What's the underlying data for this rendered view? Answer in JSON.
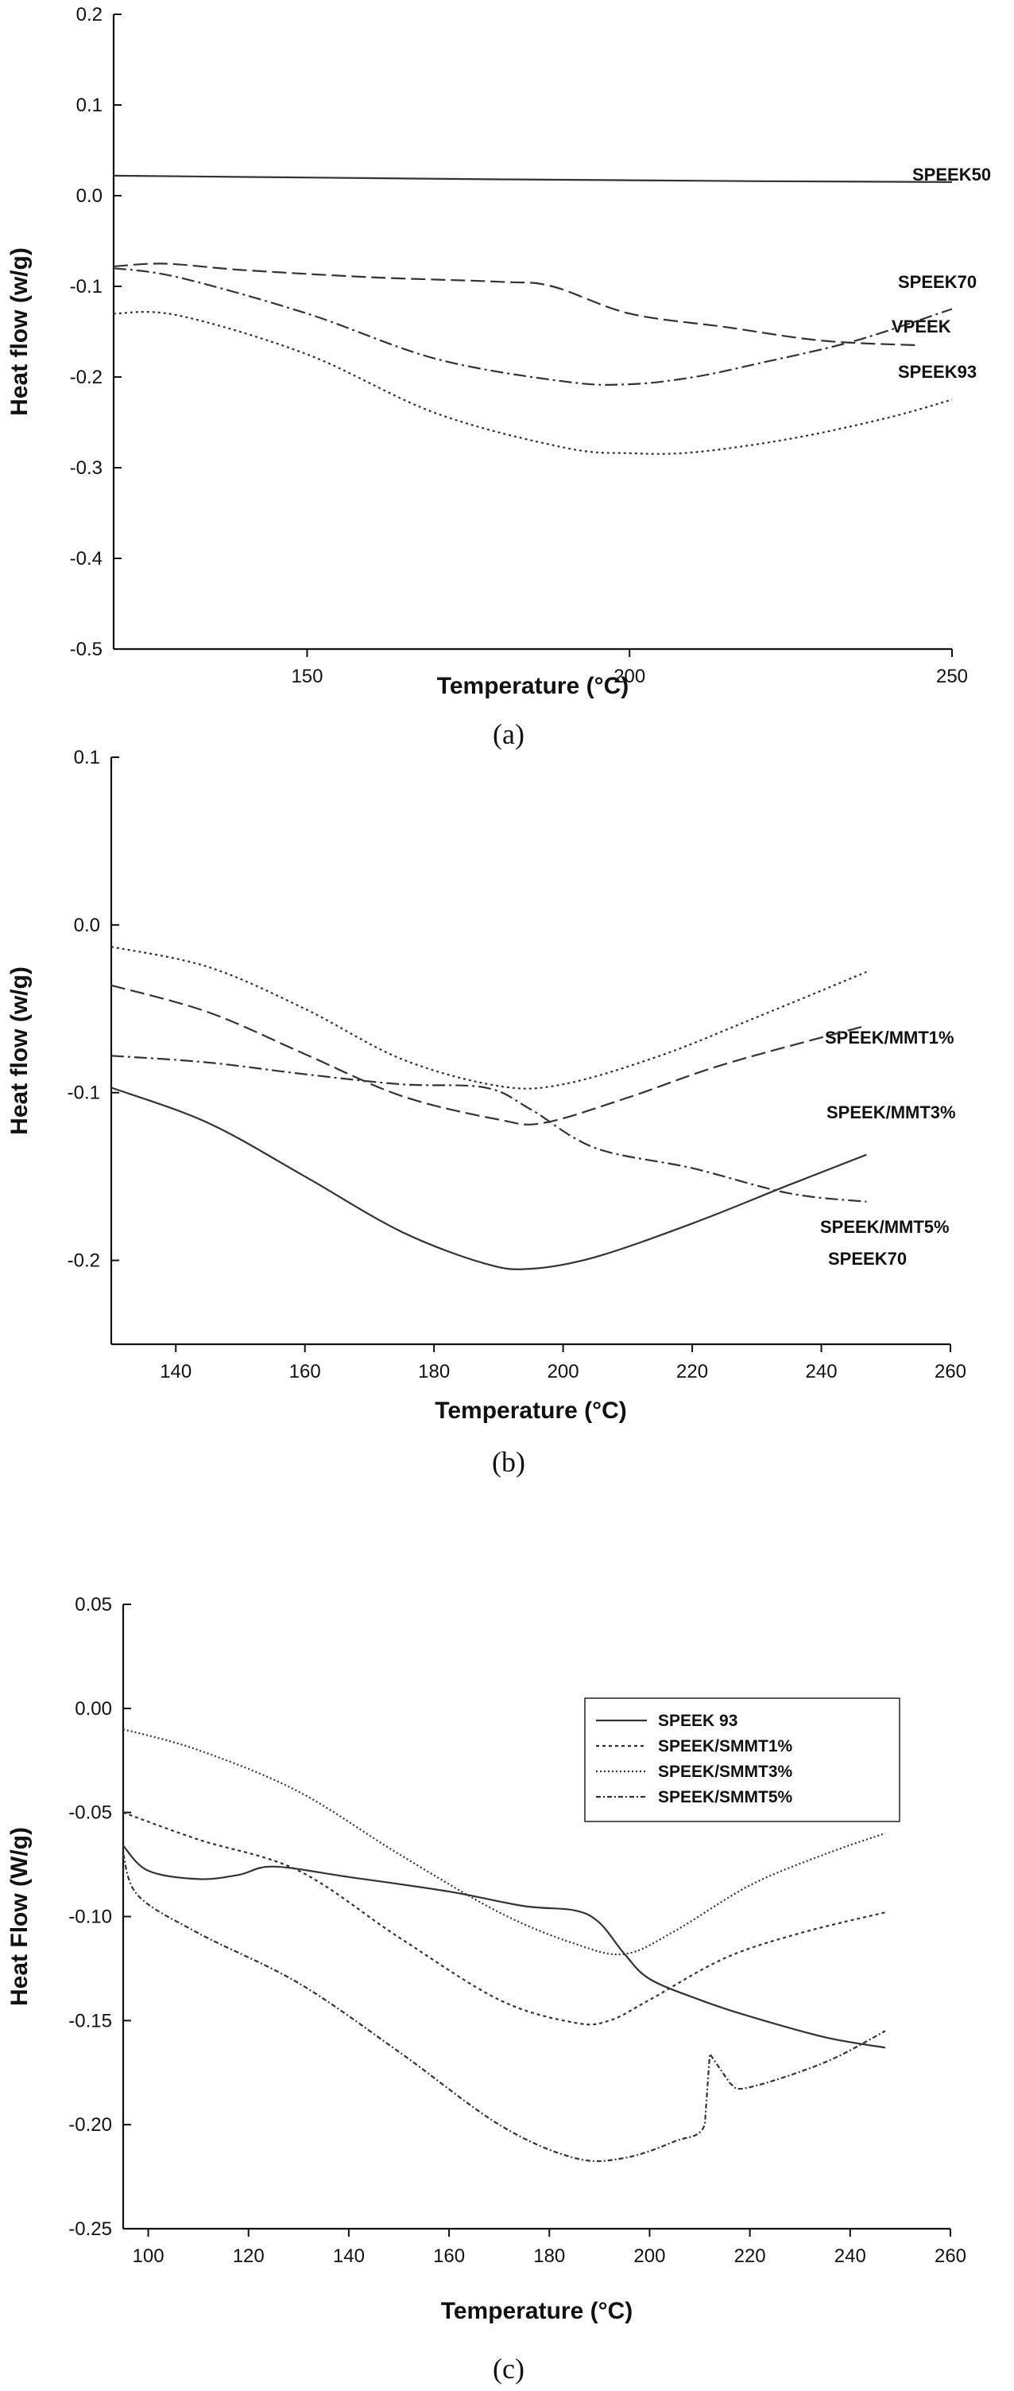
{
  "chart_data": [
    {
      "type": "line",
      "caption": "(a)",
      "xlabel": "Temperature (°C)",
      "ylabel": "Heat flow (w/g)",
      "xlim": [
        120,
        250
      ],
      "ylim": [
        -0.5,
        0.2
      ],
      "xticks": [
        150,
        200,
        250
      ],
      "yticks": [
        0.2,
        0.1,
        0.0,
        -0.1,
        -0.2,
        -0.3,
        -0.4,
        -0.5
      ],
      "ytick_labels": [
        "0.2",
        "0.1",
        "0.0",
        "-0.1",
        "-0.2",
        "-0.3",
        "-0.4",
        "-0.5"
      ],
      "grid": false,
      "series": [
        {
          "name": "SPEEK50",
          "dash": "",
          "x": [
            120,
            150,
            180,
            200,
            220,
            250
          ],
          "y": [
            0.022,
            0.02,
            0.018,
            0.017,
            0.016,
            0.015
          ]
        },
        {
          "name": "SPEEK70",
          "dash": "16,5,3,5",
          "x": [
            120,
            130,
            150,
            170,
            190,
            200,
            210,
            220,
            235,
            250
          ],
          "y": [
            -0.08,
            -0.09,
            -0.13,
            -0.18,
            -0.205,
            -0.208,
            -0.2,
            -0.185,
            -0.16,
            -0.125
          ]
        },
        {
          "name": "VPEEK",
          "dash": "18,7",
          "x": [
            120,
            128,
            140,
            160,
            180,
            188,
            200,
            215,
            230,
            245
          ],
          "y": [
            -0.078,
            -0.075,
            -0.082,
            -0.09,
            -0.095,
            -0.1,
            -0.13,
            -0.145,
            -0.16,
            -0.165
          ]
        },
        {
          "name": "SPEEK93",
          "dash": "3,4",
          "x": [
            120,
            130,
            150,
            170,
            190,
            200,
            210,
            225,
            240,
            250
          ],
          "y": [
            -0.13,
            -0.132,
            -0.175,
            -0.24,
            -0.278,
            -0.284,
            -0.283,
            -0.268,
            -0.245,
            -0.225
          ]
        }
      ]
    },
    {
      "type": "line",
      "caption": "(b)",
      "xlabel": "Temperature (°C)",
      "ylabel": "Heat flow (w/g)",
      "xlim": [
        130,
        260
      ],
      "ylim": [
        -0.25,
        0.1
      ],
      "xticks": [
        140,
        160,
        180,
        200,
        220,
        240,
        260
      ],
      "yticks": [
        0.1,
        0.0,
        -0.1,
        -0.2
      ],
      "ytick_labels": [
        "0.1",
        "0.0",
        "-0.1",
        "-0.2"
      ],
      "grid": false,
      "series": [
        {
          "name": "SPEEK/MMT1%",
          "dash": "3,4",
          "x": [
            130,
            145,
            160,
            175,
            190,
            200,
            215,
            230,
            247
          ],
          "y": [
            -0.013,
            -0.025,
            -0.05,
            -0.08,
            -0.096,
            -0.095,
            -0.078,
            -0.055,
            -0.028
          ]
        },
        {
          "name": "SPEEK/MMT3%",
          "dash": "18,7",
          "x": [
            130,
            145,
            160,
            175,
            190,
            197,
            210,
            225,
            247
          ],
          "y": [
            -0.036,
            -0.052,
            -0.077,
            -0.102,
            -0.116,
            -0.118,
            -0.103,
            -0.083,
            -0.06
          ]
        },
        {
          "name": "SPEEK/MMT5%",
          "dash": "",
          "x": [
            130,
            145,
            160,
            175,
            188,
            195,
            205,
            220,
            235,
            247
          ],
          "y": [
            -0.097,
            -0.118,
            -0.15,
            -0.183,
            -0.202,
            -0.205,
            -0.198,
            -0.178,
            -0.155,
            -0.137
          ]
        },
        {
          "name": "SPEEK70",
          "dash": "16,5,3,5",
          "x": [
            130,
            145,
            160,
            175,
            188,
            195,
            205,
            220,
            235,
            247
          ],
          "y": [
            -0.078,
            -0.082,
            -0.089,
            -0.095,
            -0.097,
            -0.11,
            -0.133,
            -0.145,
            -0.16,
            -0.165
          ]
        }
      ]
    },
    {
      "type": "line",
      "caption": "(c)",
      "xlabel": "Temperature (°C)",
      "ylabel": "Heat Flow (W/g)",
      "xlim": [
        95,
        260
      ],
      "ylim": [
        -0.25,
        0.05
      ],
      "xticks": [
        100,
        120,
        140,
        160,
        180,
        200,
        220,
        240,
        260
      ],
      "yticks": [
        0.05,
        0.0,
        -0.05,
        -0.1,
        -0.15,
        -0.2,
        -0.25
      ],
      "ytick_labels": [
        "0.05",
        "0.00",
        "-0.05",
        "-0.10",
        "-0.15",
        "-0.20",
        "-0.25"
      ],
      "grid": false,
      "legend": "top-right",
      "series": [
        {
          "name": "SPEEK 93",
          "dash": "",
          "x": [
            95,
            100,
            110,
            118,
            125,
            140,
            160,
            175,
            185,
            190,
            195,
            200,
            210,
            220,
            235,
            247
          ],
          "y": [
            -0.066,
            -0.078,
            -0.082,
            -0.08,
            -0.076,
            -0.081,
            -0.088,
            -0.095,
            -0.097,
            -0.103,
            -0.118,
            -0.13,
            -0.14,
            -0.148,
            -0.158,
            -0.163
          ]
        },
        {
          "name": "SPEEK/SMMT1%",
          "dash": "4,4",
          "x": [
            95,
            110,
            130,
            150,
            170,
            185,
            192,
            200,
            215,
            230,
            247
          ],
          "y": [
            -0.05,
            -0.063,
            -0.078,
            -0.11,
            -0.14,
            -0.151,
            -0.15,
            -0.14,
            -0.12,
            -0.108,
            -0.098
          ]
        },
        {
          "name": "SPEEK/SMMT3%",
          "dash": "2,3",
          "x": [
            95,
            110,
            130,
            150,
            170,
            185,
            195,
            205,
            220,
            235,
            247
          ],
          "y": [
            -0.01,
            -0.02,
            -0.04,
            -0.07,
            -0.098,
            -0.113,
            -0.118,
            -0.107,
            -0.085,
            -0.07,
            -0.06
          ]
        },
        {
          "name": "SPEEK/SMMT5%",
          "dash": "6,3,2,3",
          "x": [
            95,
            98,
            110,
            130,
            150,
            170,
            185,
            195,
            205,
            211,
            212,
            216,
            220,
            235,
            247
          ],
          "y": [
            -0.07,
            -0.09,
            -0.108,
            -0.132,
            -0.165,
            -0.2,
            -0.216,
            -0.216,
            -0.208,
            -0.2,
            -0.166,
            -0.18,
            -0.182,
            -0.17,
            -0.155
          ]
        }
      ]
    }
  ]
}
